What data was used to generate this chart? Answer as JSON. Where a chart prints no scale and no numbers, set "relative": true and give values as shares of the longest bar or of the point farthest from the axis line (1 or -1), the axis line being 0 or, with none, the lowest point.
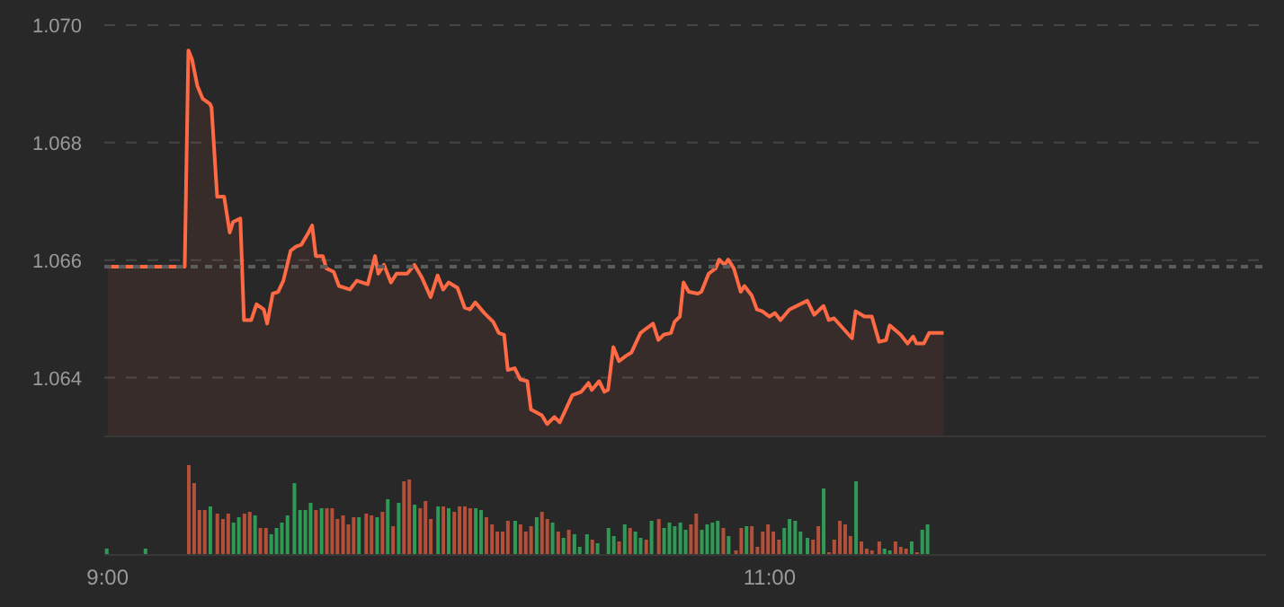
{
  "chart_data": [
    {
      "type": "area",
      "color": "#ff6a45",
      "xlim": [
        8.99,
        12.5
      ],
      "ylim": [
        1.063,
        1.07
      ],
      "yticks": [
        {
          "value": 1.064,
          "label": "1.064"
        },
        {
          "value": 1.066,
          "label": "1.066"
        },
        {
          "value": 1.068,
          "label": "1.068"
        },
        {
          "value": 1.07,
          "label": "1.070"
        }
      ],
      "tick_labels": "y",
      "grid": "y",
      "ref_lines": [
        {
          "axis": "y",
          "value": 1.06589,
          "color": "#5c5c5c",
          "line_style": "dotted"
        }
      ],
      "x": [
        9.0,
        9.233,
        9.244,
        9.255,
        9.271,
        9.287,
        9.309,
        9.314,
        9.331,
        9.352,
        9.369,
        9.379,
        9.401,
        9.412,
        9.434,
        9.45,
        9.472,
        9.482,
        9.499,
        9.515,
        9.531,
        9.553,
        9.569,
        9.585,
        9.607,
        9.618,
        9.629,
        9.65,
        9.661,
        9.683,
        9.699,
        9.732,
        9.753,
        9.786,
        9.808,
        9.818,
        9.835,
        9.856,
        9.873,
        9.905,
        9.927,
        9.949,
        9.976,
        9.997,
        10.014,
        10.03,
        10.057,
        10.079,
        10.095,
        10.111,
        10.138,
        10.165,
        10.182,
        10.198,
        10.209,
        10.23,
        10.247,
        10.268,
        10.279,
        10.312,
        10.328,
        10.35,
        10.366,
        10.382,
        10.404,
        10.431,
        10.453,
        10.463,
        10.485,
        10.501,
        10.512,
        10.528,
        10.545,
        10.566,
        10.583,
        10.61,
        10.626,
        10.648,
        10.664,
        10.68,
        10.702,
        10.713,
        10.729,
        10.74,
        10.756,
        10.783,
        10.794,
        10.816,
        10.837,
        10.848,
        10.864,
        10.875,
        10.892,
        10.913,
        10.924,
        10.946,
        10.962,
        10.978,
        11.0,
        11.016,
        11.033,
        11.06,
        11.114,
        11.135,
        11.163,
        11.179,
        11.195,
        11.249,
        11.26,
        11.287,
        11.309,
        11.331,
        11.352,
        11.363,
        11.396,
        11.417,
        11.434,
        11.444,
        11.466,
        11.482,
        11.526
      ],
      "values": [
        1.06589,
        1.06589,
        1.06957,
        1.06942,
        1.06897,
        1.06875,
        1.06866,
        1.0686,
        1.06708,
        1.06708,
        1.06647,
        1.06665,
        1.06671,
        1.06498,
        1.06498,
        1.06525,
        1.06516,
        1.06492,
        1.06543,
        1.06546,
        1.06565,
        1.06616,
        1.06623,
        1.06626,
        1.06647,
        1.06659,
        1.06607,
        1.06607,
        1.06586,
        1.0658,
        1.06556,
        1.0655,
        1.06565,
        1.06559,
        1.06607,
        1.06577,
        1.06592,
        1.06562,
        1.06577,
        1.06577,
        1.06592,
        1.06571,
        1.06537,
        1.06574,
        1.0655,
        1.06562,
        1.06553,
        1.06519,
        1.06516,
        1.06528,
        1.0651,
        1.06495,
        1.06476,
        1.06473,
        1.06413,
        1.06416,
        1.06397,
        1.06394,
        1.06346,
        1.06336,
        1.06321,
        1.06333,
        1.06324,
        1.06343,
        1.0637,
        1.06376,
        1.06391,
        1.06379,
        1.06394,
        1.06376,
        1.06379,
        1.06452,
        1.06428,
        1.06437,
        1.06443,
        1.06476,
        1.06483,
        1.06492,
        1.06464,
        1.06473,
        1.06476,
        1.06495,
        1.06504,
        1.06562,
        1.06546,
        1.06543,
        1.06546,
        1.06577,
        1.06586,
        1.06601,
        1.06592,
        1.06601,
        1.06586,
        1.06546,
        1.06556,
        1.0654,
        1.06516,
        1.06513,
        1.06504,
        1.0651,
        1.06498,
        1.06516,
        1.06531,
        1.06507,
        1.06522,
        1.06498,
        1.06501,
        1.06467,
        1.06513,
        1.06504,
        1.06504,
        1.06461,
        1.06464,
        1.06489,
        1.06473,
        1.06458,
        1.0647,
        1.06458,
        1.06458,
        1.06476,
        1.06476
      ]
    },
    {
      "type": "bar",
      "relative": true,
      "xlim": [
        8.99,
        12.5
      ],
      "xticks": [
        {
          "value": 9,
          "label": "9:00"
        },
        {
          "value": 11,
          "label": "11:00"
        }
      ],
      "tick_labels": "x",
      "x": [
        9.0,
        9.117,
        9.248,
        9.264,
        9.28,
        9.296,
        9.313,
        9.334,
        9.351,
        9.367,
        9.383,
        9.399,
        9.416,
        9.432,
        9.448,
        9.464,
        9.481,
        9.497,
        9.513,
        9.529,
        9.546,
        9.567,
        9.584,
        9.6,
        9.616,
        9.632,
        9.649,
        9.665,
        9.681,
        9.697,
        9.714,
        9.73,
        9.746,
        9.762,
        9.784,
        9.8,
        9.817,
        9.833,
        9.849,
        9.865,
        9.882,
        9.898,
        9.914,
        9.93,
        9.947,
        9.963,
        9.979,
        10.001,
        10.017,
        10.033,
        10.05,
        10.066,
        10.082,
        10.098,
        10.115,
        10.131,
        10.147,
        10.164,
        10.18,
        10.196,
        10.212,
        10.234,
        10.25,
        10.266,
        10.282,
        10.299,
        10.315,
        10.331,
        10.347,
        10.364,
        10.38,
        10.396,
        10.413,
        10.429,
        10.451,
        10.467,
        10.483,
        10.516,
        10.532,
        10.548,
        10.565,
        10.581,
        10.597,
        10.613,
        10.63,
        10.646,
        10.668,
        10.684,
        10.7,
        10.716,
        10.733,
        10.749,
        10.765,
        10.781,
        10.798,
        10.814,
        10.83,
        10.846,
        10.863,
        10.879,
        10.901,
        10.917,
        10.933,
        10.949,
        10.966,
        10.982,
        10.998,
        11.014,
        11.031,
        11.047,
        11.063,
        11.08,
        11.096,
        11.117,
        11.134,
        11.15,
        11.166,
        11.182,
        11.198,
        11.215,
        11.231,
        11.247,
        11.264,
        11.28,
        11.296,
        11.312,
        11.334,
        11.35,
        11.366,
        11.383,
        11.399,
        11.415,
        11.432,
        11.448,
        11.464,
        11.48
      ],
      "values": [
        0.07,
        0.07,
        1.0,
        0.8,
        0.5,
        0.5,
        0.54,
        0.46,
        0.4,
        0.46,
        0.36,
        0.42,
        0.46,
        0.48,
        0.44,
        0.3,
        0.3,
        0.23,
        0.3,
        0.36,
        0.44,
        0.8,
        0.5,
        0.5,
        0.58,
        0.5,
        0.52,
        0.52,
        0.52,
        0.4,
        0.44,
        0.34,
        0.42,
        0.42,
        0.46,
        0.44,
        0.42,
        0.48,
        0.62,
        0.32,
        0.58,
        0.82,
        0.84,
        0.56,
        0.52,
        0.6,
        0.4,
        0.54,
        0.54,
        0.52,
        0.48,
        0.54,
        0.54,
        0.52,
        0.52,
        0.5,
        0.42,
        0.34,
        0.26,
        0.26,
        0.38,
        0.38,
        0.34,
        0.26,
        0.32,
        0.42,
        0.48,
        0.4,
        0.36,
        0.26,
        0.19,
        0.28,
        0.23,
        0.09,
        0.23,
        0.17,
        0.13,
        0.3,
        0.21,
        0.15,
        0.34,
        0.3,
        0.26,
        0.19,
        0.17,
        0.38,
        0.4,
        0.3,
        0.36,
        0.32,
        0.36,
        0.28,
        0.34,
        0.46,
        0.28,
        0.34,
        0.36,
        0.38,
        0.3,
        0.21,
        0.05,
        0.3,
        0.32,
        0.32,
        0.09,
        0.26,
        0.34,
        0.26,
        0.17,
        0.3,
        0.4,
        0.38,
        0.26,
        0.19,
        0.17,
        0.32,
        0.74,
        0.03,
        0.17,
        0.38,
        0.34,
        0.21,
        0.82,
        0.15,
        0.07,
        0.05,
        0.15,
        0.07,
        0.05,
        0.15,
        0.09,
        0.07,
        0.15,
        0.03,
        0.28,
        0.34
      ],
      "colors": [
        "#2f9a55",
        "#2f9a55",
        "#b4503a",
        "#b4503a",
        "#b4503a",
        "#b4503a",
        "#2f9a55",
        "#b4503a",
        "#b4503a",
        "#b4503a",
        "#2f9a55",
        "#2f9a55",
        "#b4503a",
        "#b4503a",
        "#2f9a55",
        "#b4503a",
        "#b4503a",
        "#2f9a55",
        "#2f9a55",
        "#2f9a55",
        "#2f9a55",
        "#2f9a55",
        "#2f9a55",
        "#2f9a55",
        "#2f9a55",
        "#b4503a",
        "#2f9a55",
        "#b4503a",
        "#b4503a",
        "#b4503a",
        "#b4503a",
        "#b4503a",
        "#b4503a",
        "#2f9a55",
        "#b4503a",
        "#b4503a",
        "#2f9a55",
        "#b4503a",
        "#2f9a55",
        "#b4503a",
        "#2f9a55",
        "#b4503a",
        "#b4503a",
        "#2f9a55",
        "#b4503a",
        "#b4503a",
        "#b4503a",
        "#2f9a55",
        "#b4503a",
        "#2f9a55",
        "#b4503a",
        "#b4503a",
        "#b4503a",
        "#b4503a",
        "#2f9a55",
        "#2f9a55",
        "#b4503a",
        "#b4503a",
        "#b4503a",
        "#b4503a",
        "#b4503a",
        "#2f9a55",
        "#b4503a",
        "#b4503a",
        "#b4503a",
        "#2f9a55",
        "#b4503a",
        "#b4503a",
        "#2f9a55",
        "#b4503a",
        "#2f9a55",
        "#b4503a",
        "#2f9a55",
        "#2f9a55",
        "#2f9a55",
        "#b4503a",
        "#2f9a55",
        "#2f9a55",
        "#2f9a55",
        "#b4503a",
        "#2f9a55",
        "#b4503a",
        "#2f9a55",
        "#2f9a55",
        "#b4503a",
        "#2f9a55",
        "#b4503a",
        "#2f9a55",
        "#2f9a55",
        "#2f9a55",
        "#2f9a55",
        "#2f9a55",
        "#b4503a",
        "#b4503a",
        "#2f9a55",
        "#2f9a55",
        "#2f9a55",
        "#2f9a55",
        "#b4503a",
        "#2f9a55",
        "#b4503a",
        "#b4503a",
        "#2f9a55",
        "#b4503a",
        "#b4503a",
        "#b4503a",
        "#b4503a",
        "#b4503a",
        "#b4503a",
        "#2f9a55",
        "#2f9a55",
        "#2f9a55",
        "#2f9a55",
        "#2f9a55",
        "#b4503a",
        "#b4503a",
        "#2f9a55",
        "#b4503a",
        "#b4503a",
        "#b4503a",
        "#b4503a",
        "#b4503a",
        "#2f9a55",
        "#b4503a",
        "#b4503a",
        "#b4503a",
        "#b4503a",
        "#2f9a55",
        "#2f9a55",
        "#b4503a",
        "#b4503a",
        "#b4503a",
        "#2f9a55",
        "#b4503a",
        "#2f9a55",
        "#2f9a55"
      ]
    }
  ]
}
